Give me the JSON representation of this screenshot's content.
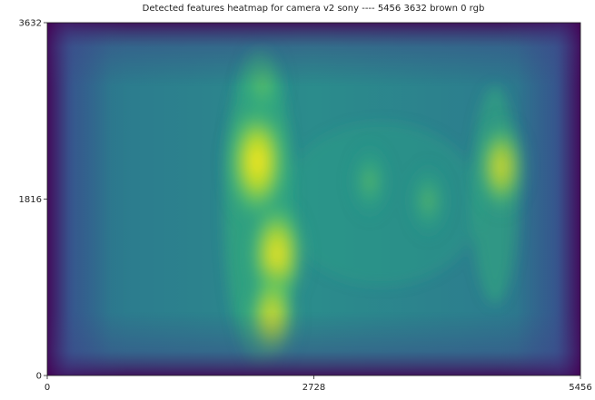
{
  "chart_data": {
    "type": "heatmap",
    "title": "Detected features heatmap for camera v2 sony ---- 5456 3632 brown 0 rgb",
    "xlabel": "",
    "ylabel": "",
    "xlim": [
      0,
      5456
    ],
    "ylim": [
      0,
      3632
    ],
    "x_ticks": [
      "0",
      "2728",
      "5456"
    ],
    "y_ticks": [
      "0",
      "1816",
      "3632"
    ],
    "colormap": "viridis",
    "colors": {
      "low": "#440154",
      "mid_low": "#31688e",
      "mid": "#21918c",
      "mid_high": "#5ec962",
      "high": "#fde725"
    },
    "hotspots": [
      {
        "x": 2150,
        "y": 2200,
        "intensity": 1.0
      },
      {
        "x": 2350,
        "y": 1250,
        "intensity": 0.85
      },
      {
        "x": 2300,
        "y": 600,
        "intensity": 0.65
      },
      {
        "x": 2200,
        "y": 3000,
        "intensity": 0.5
      },
      {
        "x": 4650,
        "y": 2150,
        "intensity": 0.6
      },
      {
        "x": 3300,
        "y": 2000,
        "intensity": 0.35
      },
      {
        "x": 3900,
        "y": 1800,
        "intensity": 0.35
      }
    ],
    "grid": false
  }
}
